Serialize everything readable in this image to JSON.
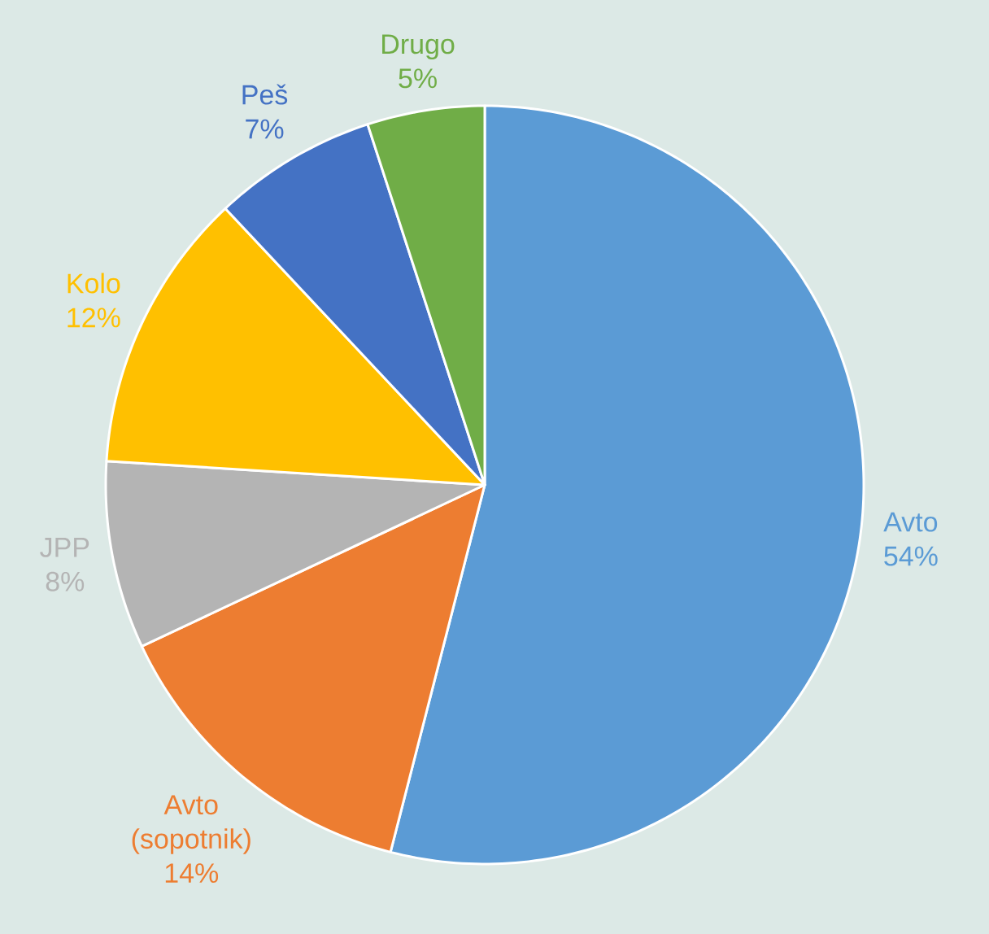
{
  "chart_data": {
    "type": "pie",
    "categories": [
      "Avto",
      "Avto (sopotnik)",
      "JPP",
      "Kolo",
      "Peš",
      "Drugo"
    ],
    "values": [
      54,
      14,
      8,
      12,
      7,
      5
    ],
    "value_labels": [
      "54%",
      "14%",
      "8%",
      "12%",
      "7%",
      "5%"
    ],
    "colors": [
      "#5b9bd5",
      "#ed7d31",
      "#b4b4b4",
      "#ffc000",
      "#4472c4",
      "#70ad47"
    ]
  }
}
